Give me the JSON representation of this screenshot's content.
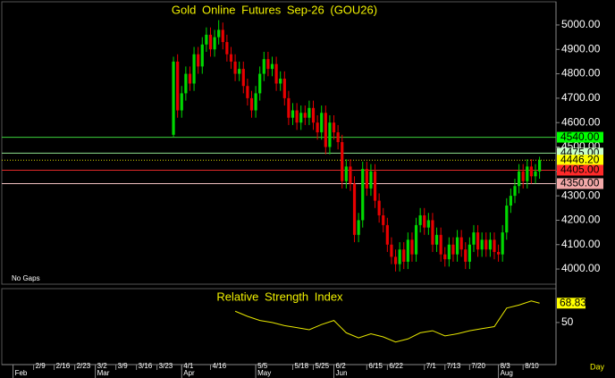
{
  "chart_data": [
    {
      "type": "candlestick",
      "title": "Gold Online Futures Sep-26 (GOU26)",
      "note": "No Gaps",
      "up_color": "#00d800",
      "down_color": "#e80000",
      "x": [
        39,
        40,
        41,
        42,
        43,
        44,
        45,
        46,
        47,
        48,
        49,
        50,
        51,
        52,
        53,
        54,
        55,
        56,
        57,
        58,
        59,
        60,
        61,
        62,
        63,
        64,
        65,
        66,
        67,
        68,
        69,
        70,
        71,
        72,
        73,
        74,
        75,
        76,
        77,
        78,
        79,
        80,
        81,
        82,
        83,
        84,
        85,
        86,
        87,
        88,
        89,
        90,
        91,
        92,
        93,
        94,
        95,
        96,
        97,
        98,
        99,
        100,
        101,
        102,
        103,
        104,
        105,
        106,
        107,
        108,
        109,
        110,
        111,
        112,
        113,
        114,
        115,
        116,
        117,
        118,
        119,
        120,
        121,
        122,
        123,
        124,
        125,
        126,
        127,
        128
      ],
      "open": [
        4550,
        4850,
        4650,
        4720,
        4800,
        4760,
        4880,
        4830,
        4920,
        4960,
        4900,
        4950,
        4980,
        4930,
        4880,
        4850,
        4800,
        4820,
        4750,
        4700,
        4650,
        4720,
        4800,
        4860,
        4820,
        4840,
        4760,
        4780,
        4700,
        4620,
        4650,
        4600,
        4640,
        4620,
        4660,
        4600,
        4560,
        4640,
        4500,
        4600,
        4560,
        4520,
        4360,
        4420,
        4350,
        4140,
        4200,
        4410,
        4330,
        4400,
        4280,
        4220,
        4180,
        4100,
        4050,
        4020,
        4080,
        4030,
        4120,
        4060,
        4180,
        4220,
        4170,
        4200,
        4100,
        4140,
        4060,
        4040,
        4100,
        4060,
        4130,
        4080,
        4030,
        4100,
        4150,
        4080,
        4120,
        4080,
        4120,
        4070,
        4060,
        4150,
        4260,
        4300,
        4340,
        4400,
        4360,
        4420,
        4380,
        4400
      ],
      "high": [
        4870,
        4880,
        4750,
        4830,
        4830,
        4910,
        4910,
        4950,
        4990,
        4990,
        4980,
        5020,
        5010,
        4960,
        4910,
        4880,
        4850,
        4850,
        4780,
        4730,
        4750,
        4830,
        4890,
        4890,
        4870,
        4870,
        4810,
        4810,
        4730,
        4680,
        4680,
        4670,
        4670,
        4690,
        4690,
        4630,
        4670,
        4670,
        4630,
        4630,
        4590,
        4550,
        4450,
        4450,
        4380,
        4230,
        4440,
        4440,
        4430,
        4430,
        4310,
        4250,
        4210,
        4130,
        4080,
        4110,
        4110,
        4150,
        4150,
        4210,
        4250,
        4250,
        4230,
        4230,
        4170,
        4170,
        4090,
        4130,
        4130,
        4160,
        4160,
        4110,
        4130,
        4180,
        4180,
        4150,
        4150,
        4150,
        4150,
        4100,
        4180,
        4290,
        4330,
        4370,
        4430,
        4430,
        4450,
        4450,
        4430,
        4460
      ],
      "low": [
        4540,
        4620,
        4620,
        4690,
        4730,
        4730,
        4800,
        4800,
        4890,
        4870,
        4870,
        4920,
        4900,
        4850,
        4820,
        4770,
        4770,
        4720,
        4670,
        4620,
        4620,
        4690,
        4770,
        4790,
        4790,
        4730,
        4730,
        4670,
        4590,
        4590,
        4570,
        4570,
        4590,
        4590,
        4570,
        4530,
        4530,
        4470,
        4470,
        4530,
        4490,
        4330,
        4330,
        4320,
        4110,
        4110,
        4170,
        4300,
        4300,
        4250,
        4190,
        4150,
        4070,
        4020,
        3990,
        3990,
        4000,
        4000,
        4030,
        4030,
        4150,
        4140,
        4140,
        4070,
        4070,
        4030,
        4010,
        4010,
        4030,
        4030,
        4050,
        4000,
        4000,
        4070,
        4050,
        4050,
        4050,
        4050,
        4040,
        4030,
        4030,
        4120,
        4230,
        4270,
        4310,
        4330,
        4330,
        4350,
        4350,
        4370
      ],
      "close": [
        4850,
        4650,
        4720,
        4800,
        4760,
        4880,
        4830,
        4920,
        4960,
        4900,
        4950,
        4980,
        4930,
        4880,
        4850,
        4800,
        4820,
        4750,
        4700,
        4650,
        4720,
        4800,
        4860,
        4820,
        4840,
        4760,
        4780,
        4700,
        4620,
        4650,
        4600,
        4640,
        4620,
        4660,
        4600,
        4560,
        4640,
        4500,
        4600,
        4560,
        4520,
        4360,
        4420,
        4350,
        4140,
        4200,
        4410,
        4330,
        4400,
        4280,
        4220,
        4180,
        4100,
        4050,
        4020,
        4080,
        4030,
        4120,
        4060,
        4180,
        4220,
        4170,
        4200,
        4100,
        4140,
        4060,
        4040,
        4100,
        4060,
        4130,
        4080,
        4030,
        4100,
        4150,
        4080,
        4120,
        4080,
        4120,
        4070,
        4060,
        4150,
        4260,
        4300,
        4340,
        4400,
        4360,
        4420,
        4380,
        4400,
        4446
      ],
      "levels": [
        {
          "value": 4540,
          "label": "4540.00",
          "color": "#3cd23c",
          "label_bg": "#00ff00"
        },
        {
          "value": 4475,
          "label": "4475.00",
          "color": "#8ee08e",
          "label_bg": "#c8ffc8"
        },
        {
          "value": 4446.2,
          "label": "4446.20",
          "color": "#d8d800",
          "label_bg": "#ffff00"
        },
        {
          "value": 4405,
          "label": "4405.00",
          "color": "#e02828",
          "label_bg": "#ff2a2a"
        },
        {
          "value": 4350,
          "label": "4350.00",
          "color": "#f0c0c0",
          "label_bg": "#f2a8a8"
        }
      ],
      "xlim": [
        -1,
        132
      ],
      "xticks": [
        {
          "value": 5,
          "label": "2/9"
        },
        {
          "value": 10,
          "label": "2/16"
        },
        {
          "value": 15,
          "label": "2/23"
        },
        {
          "value": 20,
          "label": "3/2"
        },
        {
          "value": 25,
          "label": "3/9"
        },
        {
          "value": 30,
          "label": "3/16"
        },
        {
          "value": 35,
          "label": "3/23"
        },
        {
          "value": 41,
          "label": "4/1"
        },
        {
          "value": 48,
          "label": "4/16"
        },
        {
          "value": 59,
          "label": "5/5"
        },
        {
          "value": 68,
          "label": "5/18"
        },
        {
          "value": 73,
          "label": "5/25"
        },
        {
          "value": 78,
          "label": "6/2"
        },
        {
          "value": 86,
          "label": "6/15"
        },
        {
          "value": 91,
          "label": "6/22"
        },
        {
          "value": 100,
          "label": "7/1"
        },
        {
          "value": 105,
          "label": "7/13"
        },
        {
          "value": 111,
          "label": "7/20"
        },
        {
          "value": 118,
          "label": "8/3"
        },
        {
          "value": 124,
          "label": "8/10"
        }
      ],
      "months": [
        {
          "value": 0,
          "label": "Feb"
        },
        {
          "value": 20,
          "label": "Mar"
        },
        {
          "value": 41,
          "label": "Apr"
        },
        {
          "value": 59,
          "label": "May"
        },
        {
          "value": 78,
          "label": "Jun"
        },
        {
          "value": 118,
          "label": "Aug"
        }
      ],
      "xlabel": "Day",
      "ylim": [
        3938,
        5095
      ],
      "yticks": [
        {
          "value": 4000,
          "label": "4000.00"
        },
        {
          "value": 4100,
          "label": "4100.00"
        },
        {
          "value": 4200,
          "label": "4200.00"
        },
        {
          "value": 4300,
          "label": "4300.00"
        },
        {
          "value": 4400,
          "label": "4400.00"
        },
        {
          "value": 4500,
          "label": "4500.00"
        },
        {
          "value": 4600,
          "label": "4600.00"
        },
        {
          "value": 4700,
          "label": "4700.00"
        },
        {
          "value": 4800,
          "label": "4800.00"
        },
        {
          "value": 4900,
          "label": "4900.00"
        },
        {
          "value": 5000,
          "label": "5000.00"
        }
      ]
    },
    {
      "type": "line",
      "title": "Relative Strength Index",
      "color": "#e8e800",
      "x": [
        54,
        57,
        60,
        63,
        66,
        69,
        72,
        75,
        78,
        81,
        84,
        87,
        90,
        93,
        96,
        99,
        102,
        105,
        108,
        111,
        114,
        117,
        120,
        123,
        126,
        128
      ],
      "values": [
        61,
        56,
        52,
        50,
        47,
        45,
        43,
        48,
        52,
        40,
        35,
        39,
        36,
        31,
        34,
        40,
        42,
        37,
        39,
        42,
        44,
        46,
        64,
        67,
        71,
        68.83
      ],
      "ylim": [
        9,
        83
      ],
      "yticks": [
        50
      ]
    }
  ]
}
